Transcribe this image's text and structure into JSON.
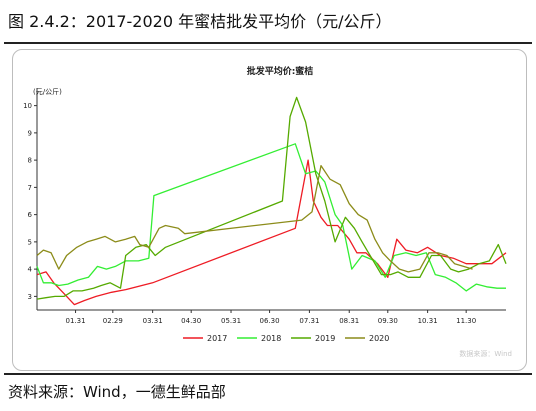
{
  "figure": {
    "title": "图 2.4.2：2017-2020 年蜜桔批发平均价（元/公斤）",
    "source": "资料来源：Wind，一德生鲜品部"
  },
  "chart_data": {
    "type": "line",
    "title": "批发平均价:蜜桔",
    "ylabel": "(元/公斤)",
    "xlabel": "",
    "watermark": "数据来源：Wind",
    "ylim": [
      2.5,
      10.5
    ],
    "yticks": [
      3,
      4,
      5,
      6,
      7,
      8,
      9,
      10
    ],
    "x_domain": [
      "01.01",
      "12.31"
    ],
    "x_ticks": [
      "01.31",
      "02.29",
      "03.31",
      "04.30",
      "05.31",
      "06.30",
      "07.31",
      "08.31",
      "09.30",
      "10.31",
      "11.30"
    ],
    "grid": false,
    "legend_position": "bottom",
    "series": [
      {
        "name": "2017",
        "color": "#ee1c25",
        "points": [
          [
            "01.01",
            3.8
          ],
          [
            "01.08",
            3.9
          ],
          [
            "01.14",
            3.5
          ],
          [
            "01.22",
            3.1
          ],
          [
            "01.30",
            2.7
          ],
          [
            "02.07",
            2.85
          ],
          [
            "02.16",
            3.0
          ],
          [
            "02.28",
            3.15
          ],
          [
            "03.10",
            3.25
          ],
          [
            "03.31",
            3.5
          ],
          [
            "07.20",
            5.5
          ],
          [
            "07.30",
            8.0
          ],
          [
            "08.03",
            6.5
          ],
          [
            "08.09",
            5.9
          ],
          [
            "08.14",
            5.6
          ],
          [
            "08.22",
            5.6
          ],
          [
            "08.31",
            5.1
          ],
          [
            "09.06",
            4.6
          ],
          [
            "09.13",
            4.6
          ],
          [
            "09.22",
            4.2
          ],
          [
            "09.30",
            3.7
          ],
          [
            "10.07",
            5.1
          ],
          [
            "10.14",
            4.7
          ],
          [
            "10.23",
            4.6
          ],
          [
            "10.31",
            4.8
          ],
          [
            "11.10",
            4.5
          ],
          [
            "11.20",
            4.4
          ],
          [
            "11.30",
            4.2
          ],
          [
            "12.10",
            4.2
          ],
          [
            "12.20",
            4.2
          ],
          [
            "12.31",
            4.6
          ]
        ]
      },
      {
        "name": "2018",
        "color": "#33ee33",
        "points": [
          [
            "01.01",
            4.1
          ],
          [
            "01.06",
            3.5
          ],
          [
            "01.12",
            3.5
          ],
          [
            "01.18",
            3.4
          ],
          [
            "01.25",
            3.45
          ],
          [
            "02.02",
            3.6
          ],
          [
            "02.10",
            3.7
          ],
          [
            "02.17",
            4.1
          ],
          [
            "02.24",
            4.0
          ],
          [
            "03.02",
            4.1
          ],
          [
            "03.10",
            4.3
          ],
          [
            "03.20",
            4.3
          ],
          [
            "03.28",
            4.4
          ],
          [
            "04.01",
            6.7
          ],
          [
            "07.20",
            8.6
          ],
          [
            "07.28",
            7.5
          ],
          [
            "08.05",
            7.6
          ],
          [
            "08.12",
            7.2
          ],
          [
            "08.20",
            6.0
          ],
          [
            "08.26",
            5.6
          ],
          [
            "09.02",
            4.0
          ],
          [
            "09.10",
            4.5
          ],
          [
            "09.20",
            4.3
          ],
          [
            "09.28",
            3.7
          ],
          [
            "10.05",
            4.5
          ],
          [
            "10.14",
            4.6
          ],
          [
            "10.22",
            4.5
          ],
          [
            "10.30",
            4.6
          ],
          [
            "11.06",
            3.8
          ],
          [
            "11.14",
            3.7
          ],
          [
            "11.22",
            3.5
          ],
          [
            "11.30",
            3.2
          ],
          [
            "12.08",
            3.45
          ],
          [
            "12.16",
            3.35
          ],
          [
            "12.24",
            3.3
          ],
          [
            "12.31",
            3.3
          ]
        ]
      },
      {
        "name": "2019",
        "color": "#55aa00",
        "points": [
          [
            "01.01",
            2.9
          ],
          [
            "01.08",
            2.95
          ],
          [
            "01.15",
            3.0
          ],
          [
            "01.22",
            3.0
          ],
          [
            "01.29",
            3.2
          ],
          [
            "02.05",
            3.2
          ],
          [
            "02.14",
            3.3
          ],
          [
            "02.20",
            3.4
          ],
          [
            "02.27",
            3.5
          ],
          [
            "03.06",
            3.3
          ],
          [
            "03.10",
            4.5
          ],
          [
            "03.18",
            4.8
          ],
          [
            "03.26",
            4.9
          ],
          [
            "04.02",
            4.5
          ],
          [
            "04.10",
            4.8
          ],
          [
            "07.10",
            6.5
          ],
          [
            "07.16",
            9.6
          ],
          [
            "07.21",
            10.3
          ],
          [
            "07.28",
            9.4
          ],
          [
            "08.05",
            7.5
          ],
          [
            "08.12",
            6.5
          ],
          [
            "08.20",
            5.0
          ],
          [
            "08.28",
            5.9
          ],
          [
            "09.04",
            5.5
          ],
          [
            "09.10",
            5.0
          ],
          [
            "09.15",
            4.6
          ],
          [
            "09.25",
            3.8
          ],
          [
            "10.02",
            3.8
          ],
          [
            "10.08",
            3.9
          ],
          [
            "10.16",
            3.7
          ],
          [
            "10.25",
            3.7
          ],
          [
            "11.03",
            4.5
          ],
          [
            "11.10",
            4.5
          ],
          [
            "11.18",
            4.0
          ],
          [
            "11.24",
            3.9
          ],
          [
            "12.02",
            4.0
          ],
          [
            "12.10",
            4.2
          ],
          [
            "12.18",
            4.3
          ],
          [
            "12.25",
            4.9
          ],
          [
            "12.31",
            4.2
          ]
        ]
      },
      {
        "name": "2020",
        "color": "#8c8c1a",
        "points": [
          [
            "01.01",
            4.5
          ],
          [
            "01.06",
            4.7
          ],
          [
            "01.12",
            4.6
          ],
          [
            "01.18",
            4.0
          ],
          [
            "01.24",
            4.5
          ],
          [
            "02.01",
            4.8
          ],
          [
            "02.09",
            5.0
          ],
          [
            "02.16",
            5.1
          ],
          [
            "02.23",
            5.2
          ],
          [
            "03.02",
            5.0
          ],
          [
            "03.10",
            5.1
          ],
          [
            "03.17",
            5.2
          ],
          [
            "03.21",
            4.9
          ],
          [
            "03.28",
            4.8
          ],
          [
            "04.05",
            5.5
          ],
          [
            "04.10",
            5.6
          ],
          [
            "04.20",
            5.5
          ],
          [
            "04.25",
            5.3
          ],
          [
            "07.25",
            5.8
          ],
          [
            "08.02",
            6.1
          ],
          [
            "08.09",
            7.8
          ],
          [
            "08.16",
            7.3
          ],
          [
            "08.24",
            7.1
          ],
          [
            "08.31",
            6.4
          ],
          [
            "09.07",
            6.0
          ],
          [
            "09.14",
            5.8
          ],
          [
            "09.20",
            5.1
          ],
          [
            "09.26",
            4.6
          ],
          [
            "10.02",
            4.3
          ],
          [
            "10.09",
            4.0
          ],
          [
            "10.16",
            3.9
          ],
          [
            "10.25",
            4.0
          ],
          [
            "11.01",
            4.6
          ],
          [
            "11.08",
            4.6
          ],
          [
            "11.15",
            4.5
          ],
          [
            "11.21",
            4.2
          ],
          [
            "11.28",
            4.1
          ],
          [
            "12.05",
            4.0
          ]
        ]
      }
    ]
  }
}
